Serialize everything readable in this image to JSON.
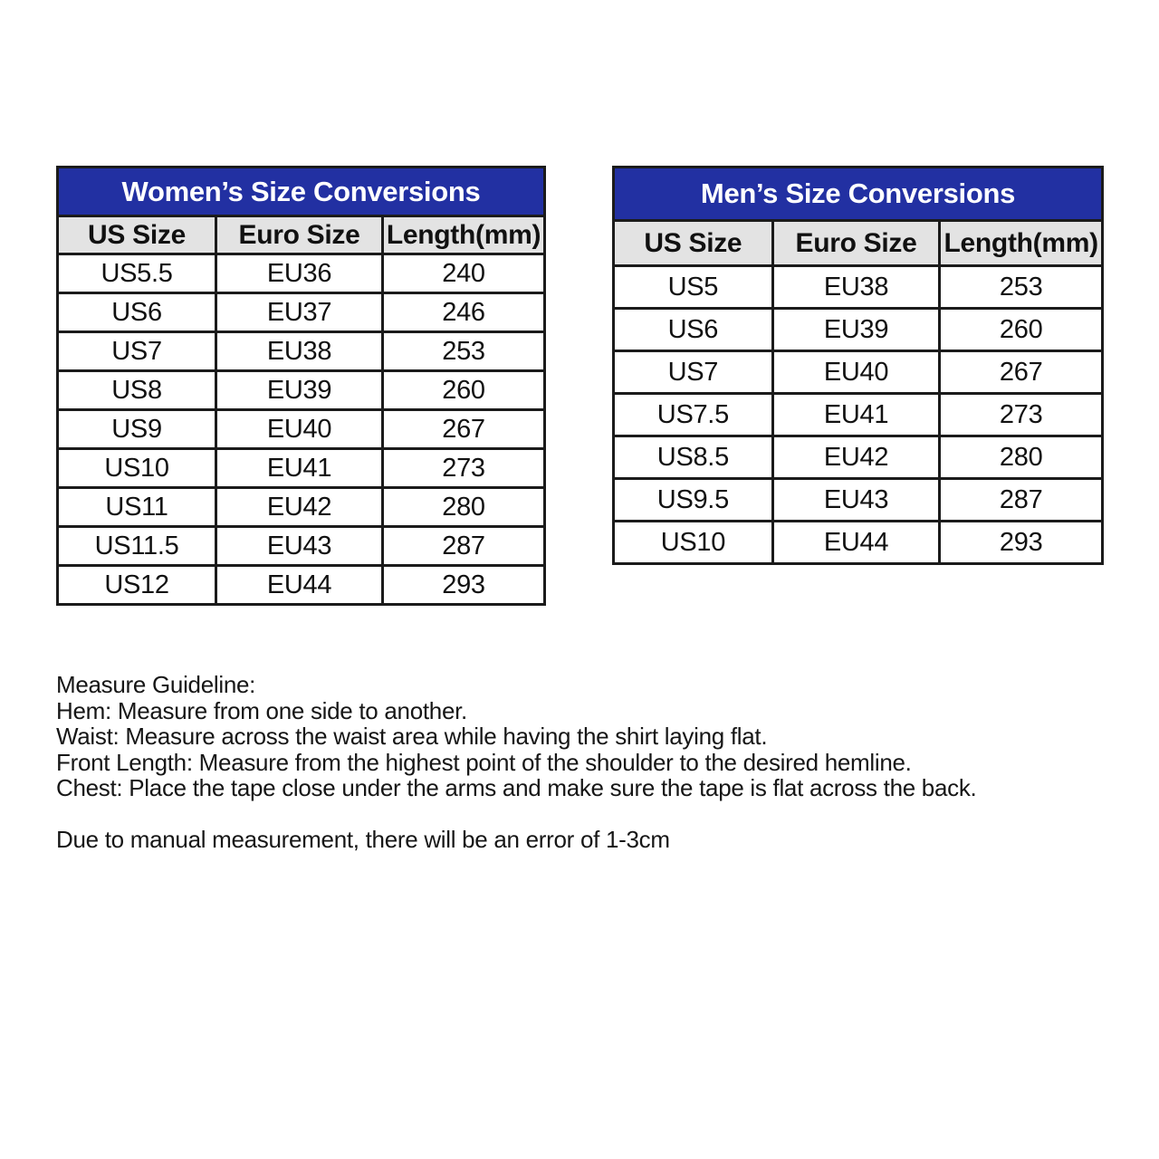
{
  "colors": {
    "title_bar_blue": "#2230a2",
    "title_text": "#ffffff",
    "column_header_gray": "#e3e3e3",
    "grid_border": "#1b1b1b",
    "body_text": "#111111",
    "page_background": "#ffffff"
  },
  "tables": [
    {
      "title": "Women’s Size Conversions",
      "columns": [
        "US Size",
        "Euro Size",
        "Length(mm)"
      ],
      "rows": [
        [
          "US5.5",
          "EU36",
          "240"
        ],
        [
          "US6",
          "EU37",
          "246"
        ],
        [
          "US7",
          "EU38",
          "253"
        ],
        [
          "US8",
          "EU39",
          "260"
        ],
        [
          "US9",
          "EU40",
          "267"
        ],
        [
          "US10",
          "EU41",
          "273"
        ],
        [
          "US11",
          "EU42",
          "280"
        ],
        [
          "US11.5",
          "EU43",
          "287"
        ],
        [
          "US12",
          "EU44",
          "293"
        ]
      ]
    },
    {
      "title": "Men’s Size Conversions",
      "columns": [
        "US Size",
        "Euro Size",
        "Length(mm)"
      ],
      "rows": [
        [
          "US5",
          "EU38",
          "253"
        ],
        [
          "US6",
          "EU39",
          "260"
        ],
        [
          "US7",
          "EU40",
          "267"
        ],
        [
          "US7.5",
          "EU41",
          "273"
        ],
        [
          "US8.5",
          "EU42",
          "280"
        ],
        [
          "US9.5",
          "EU43",
          "287"
        ],
        [
          "US10",
          "EU44",
          "293"
        ]
      ]
    }
  ],
  "guideline": {
    "heading": "Measure Guideline:",
    "lines": [
      "Hem: Measure from one side to another.",
      "Waist: Measure across the waist area while having the shirt laying flat.",
      "Front Length: Measure from the highest point of the shoulder to the desired hemline.",
      "Chest: Place the tape close under the arms and make sure the tape is flat across the back."
    ],
    "note": "Due to manual measurement, there will be an error of 1-3cm"
  }
}
